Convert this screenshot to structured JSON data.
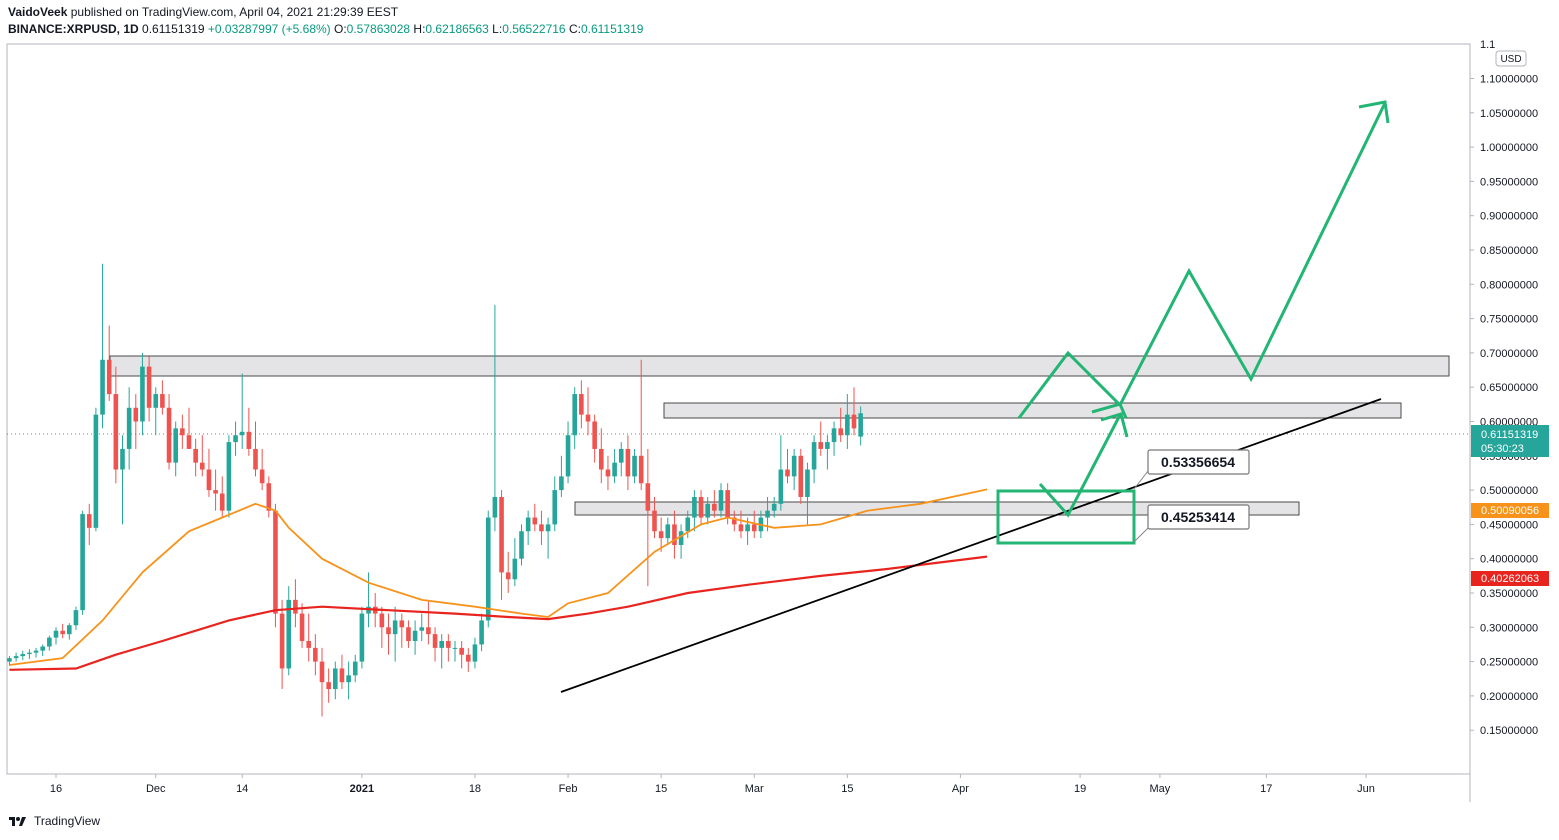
{
  "header": {
    "author": "VaidoVeek",
    "published_text": "published on TradingView.com, April 04, 2021 21:29:39 EEST",
    "symbol": "BINANCE:XRPUSD, 1D",
    "last": "0.61151319",
    "change": "+0.03287997 (+5.68%)",
    "o_label": "O:",
    "o_value": "0.57863028",
    "h_label": "H:",
    "h_value": "0.62186563",
    "l_label": "L:",
    "l_value": "0.56522716",
    "c_label": "C:",
    "c_value": "0.61151319"
  },
  "footer": {
    "brand": "TradingView",
    "icon": "tradingview-logo-icon"
  },
  "colors": {
    "up": "#26a69a",
    "down": "#ef5350",
    "ema_fast": "#f7931a",
    "ema_slow": "#e8241f",
    "projection": "#22b573",
    "trendline": "#000000",
    "zone_fill": "#e4e4e7",
    "price_line": "#26a69a"
  },
  "chart_data": {
    "type": "candlestick",
    "title": "BINANCE:XRPUSD, 1D",
    "currency_label": "USD",
    "ylim": [
      0.12,
      1.13
    ],
    "y_ticks": [
      "0.15000000",
      "0.20000000",
      "0.25000000",
      "0.30000000",
      "0.35000000",
      "0.40000000",
      "0.45000000",
      "0.50000000",
      "0.55000000",
      "0.60000000",
      "0.65000000",
      "0.70000000",
      "0.75000000",
      "0.80000000",
      "0.85000000",
      "0.90000000",
      "0.95000000",
      "1.00000000",
      "1.05000000",
      "1.10000000"
    ],
    "y_top_tick": "1.1",
    "x_ticks": [
      {
        "label": "16",
        "day": 0
      },
      {
        "label": "Dec",
        "day": 15
      },
      {
        "label": "14",
        "day": 28
      },
      {
        "label": "2021",
        "day": 46,
        "bold": true
      },
      {
        "label": "18",
        "day": 63
      },
      {
        "label": "Feb",
        "day": 77
      },
      {
        "label": "15",
        "day": 91
      },
      {
        "label": "Mar",
        "day": 105
      },
      {
        "label": "15",
        "day": 119
      },
      {
        "label": "Apr",
        "day": 136
      },
      {
        "label": "19",
        "day": 154
      },
      {
        "label": "May",
        "day": 166
      },
      {
        "label": "17",
        "day": 182
      },
      {
        "label": "Jun",
        "day": 197
      }
    ],
    "price_badges": [
      {
        "value": "0.61151319",
        "sub": "05:30:23",
        "color": "#26a69a"
      },
      {
        "value": "0.50090056",
        "color": "#f7931a"
      },
      {
        "value": "0.40262063",
        "color": "#e8241f"
      }
    ],
    "callouts": [
      "0.53356654",
      "0.45253414"
    ],
    "candles_start_day": -7,
    "candles": [
      [
        0.25,
        0.258,
        0.244,
        0.255
      ],
      [
        0.255,
        0.263,
        0.25,
        0.258
      ],
      [
        0.258,
        0.266,
        0.252,
        0.261
      ],
      [
        0.261,
        0.268,
        0.254,
        0.263
      ],
      [
        0.263,
        0.27,
        0.256,
        0.266
      ],
      [
        0.266,
        0.275,
        0.258,
        0.272
      ],
      [
        0.272,
        0.288,
        0.266,
        0.285
      ],
      [
        0.285,
        0.3,
        0.275,
        0.295
      ],
      [
        0.295,
        0.305,
        0.284,
        0.29
      ],
      [
        0.29,
        0.306,
        0.282,
        0.303
      ],
      [
        0.303,
        0.33,
        0.296,
        0.325
      ],
      [
        0.325,
        0.47,
        0.318,
        0.465
      ],
      [
        0.465,
        0.48,
        0.42,
        0.445
      ],
      [
        0.445,
        0.62,
        0.44,
        0.61
      ],
      [
        0.61,
        0.83,
        0.59,
        0.69
      ],
      [
        0.69,
        0.74,
        0.63,
        0.64
      ],
      [
        0.64,
        0.68,
        0.51,
        0.53
      ],
      [
        0.53,
        0.58,
        0.45,
        0.56
      ],
      [
        0.56,
        0.65,
        0.53,
        0.62
      ],
      [
        0.62,
        0.64,
        0.56,
        0.6
      ],
      [
        0.6,
        0.7,
        0.58,
        0.68
      ],
      [
        0.68,
        0.695,
        0.6,
        0.62
      ],
      [
        0.62,
        0.65,
        0.58,
        0.64
      ],
      [
        0.64,
        0.66,
        0.61,
        0.62
      ],
      [
        0.62,
        0.64,
        0.53,
        0.54
      ],
      [
        0.54,
        0.6,
        0.52,
        0.59
      ],
      [
        0.59,
        0.61,
        0.56,
        0.58
      ],
      [
        0.58,
        0.62,
        0.56,
        0.56
      ],
      [
        0.56,
        0.575,
        0.52,
        0.54
      ],
      [
        0.54,
        0.58,
        0.52,
        0.53
      ],
      [
        0.53,
        0.56,
        0.49,
        0.5
      ],
      [
        0.5,
        0.53,
        0.47,
        0.495
      ],
      [
        0.495,
        0.52,
        0.46,
        0.47
      ],
      [
        0.47,
        0.58,
        0.46,
        0.57
      ],
      [
        0.57,
        0.6,
        0.55,
        0.58
      ],
      [
        0.58,
        0.67,
        0.56,
        0.585
      ],
      [
        0.585,
        0.62,
        0.55,
        0.56
      ],
      [
        0.56,
        0.6,
        0.52,
        0.53
      ],
      [
        0.53,
        0.56,
        0.5,
        0.51
      ],
      [
        0.51,
        0.52,
        0.46,
        0.47
      ],
      [
        0.47,
        0.48,
        0.3,
        0.32
      ],
      [
        0.32,
        0.34,
        0.21,
        0.24
      ],
      [
        0.24,
        0.36,
        0.23,
        0.34
      ],
      [
        0.34,
        0.37,
        0.3,
        0.32
      ],
      [
        0.32,
        0.335,
        0.27,
        0.28
      ],
      [
        0.28,
        0.32,
        0.25,
        0.27
      ],
      [
        0.27,
        0.29,
        0.23,
        0.25
      ],
      [
        0.25,
        0.27,
        0.17,
        0.22
      ],
      [
        0.22,
        0.24,
        0.19,
        0.21
      ],
      [
        0.21,
        0.25,
        0.195,
        0.24
      ],
      [
        0.24,
        0.26,
        0.21,
        0.22
      ],
      [
        0.22,
        0.25,
        0.195,
        0.23
      ],
      [
        0.23,
        0.26,
        0.22,
        0.25
      ],
      [
        0.25,
        0.33,
        0.24,
        0.32
      ],
      [
        0.32,
        0.38,
        0.3,
        0.33
      ],
      [
        0.33,
        0.35,
        0.3,
        0.32
      ],
      [
        0.32,
        0.33,
        0.27,
        0.3
      ],
      [
        0.3,
        0.32,
        0.26,
        0.29
      ],
      [
        0.29,
        0.33,
        0.25,
        0.31
      ],
      [
        0.31,
        0.32,
        0.27,
        0.3
      ],
      [
        0.3,
        0.31,
        0.27,
        0.28
      ],
      [
        0.28,
        0.31,
        0.26,
        0.295
      ],
      [
        0.295,
        0.32,
        0.28,
        0.3
      ],
      [
        0.3,
        0.34,
        0.275,
        0.29
      ],
      [
        0.29,
        0.3,
        0.25,
        0.27
      ],
      [
        0.27,
        0.29,
        0.24,
        0.28
      ],
      [
        0.28,
        0.29,
        0.25,
        0.27
      ],
      [
        0.27,
        0.28,
        0.25,
        0.27
      ],
      [
        0.27,
        0.28,
        0.24,
        0.26
      ],
      [
        0.26,
        0.27,
        0.235,
        0.25
      ],
      [
        0.25,
        0.285,
        0.24,
        0.275
      ],
      [
        0.275,
        0.32,
        0.265,
        0.31
      ],
      [
        0.31,
        0.47,
        0.3,
        0.46
      ],
      [
        0.46,
        0.77,
        0.44,
        0.49
      ],
      [
        0.49,
        0.5,
        0.34,
        0.38
      ],
      [
        0.38,
        0.41,
        0.35,
        0.37
      ],
      [
        0.37,
        0.43,
        0.36,
        0.4
      ],
      [
        0.4,
        0.45,
        0.39,
        0.44
      ],
      [
        0.44,
        0.47,
        0.42,
        0.46
      ],
      [
        0.46,
        0.48,
        0.44,
        0.45
      ],
      [
        0.45,
        0.47,
        0.42,
        0.44
      ],
      [
        0.44,
        0.46,
        0.4,
        0.45
      ],
      [
        0.45,
        0.52,
        0.44,
        0.5
      ],
      [
        0.5,
        0.55,
        0.49,
        0.52
      ],
      [
        0.52,
        0.6,
        0.51,
        0.58
      ],
      [
        0.58,
        0.65,
        0.56,
        0.64
      ],
      [
        0.64,
        0.66,
        0.59,
        0.61
      ],
      [
        0.61,
        0.65,
        0.58,
        0.6
      ],
      [
        0.6,
        0.61,
        0.54,
        0.56
      ],
      [
        0.56,
        0.59,
        0.51,
        0.53
      ],
      [
        0.53,
        0.55,
        0.5,
        0.52
      ],
      [
        0.52,
        0.56,
        0.51,
        0.54
      ],
      [
        0.54,
        0.57,
        0.52,
        0.56
      ],
      [
        0.56,
        0.58,
        0.5,
        0.52
      ],
      [
        0.52,
        0.56,
        0.51,
        0.55
      ],
      [
        0.55,
        0.69,
        0.5,
        0.51
      ],
      [
        0.51,
        0.56,
        0.36,
        0.47
      ],
      [
        0.47,
        0.49,
        0.43,
        0.44
      ],
      [
        0.44,
        0.46,
        0.41,
        0.43
      ],
      [
        0.43,
        0.46,
        0.42,
        0.45
      ],
      [
        0.45,
        0.47,
        0.4,
        0.42
      ],
      [
        0.42,
        0.45,
        0.4,
        0.44
      ],
      [
        0.44,
        0.47,
        0.43,
        0.46
      ],
      [
        0.46,
        0.5,
        0.44,
        0.49
      ],
      [
        0.49,
        0.5,
        0.45,
        0.46
      ],
      [
        0.46,
        0.49,
        0.45,
        0.48
      ],
      [
        0.48,
        0.5,
        0.46,
        0.47
      ],
      [
        0.47,
        0.51,
        0.46,
        0.5
      ],
      [
        0.5,
        0.51,
        0.45,
        0.46
      ],
      [
        0.46,
        0.47,
        0.44,
        0.45
      ],
      [
        0.45,
        0.47,
        0.43,
        0.44
      ],
      [
        0.44,
        0.46,
        0.42,
        0.45
      ],
      [
        0.45,
        0.47,
        0.43,
        0.44
      ],
      [
        0.44,
        0.47,
        0.43,
        0.46
      ],
      [
        0.46,
        0.49,
        0.44,
        0.47
      ],
      [
        0.47,
        0.49,
        0.46,
        0.48
      ],
      [
        0.48,
        0.58,
        0.47,
        0.53
      ],
      [
        0.53,
        0.56,
        0.51,
        0.52
      ],
      [
        0.52,
        0.56,
        0.5,
        0.55
      ],
      [
        0.55,
        0.56,
        0.48,
        0.49
      ],
      [
        0.49,
        0.54,
        0.45,
        0.53
      ],
      [
        0.53,
        0.58,
        0.51,
        0.57
      ],
      [
        0.57,
        0.6,
        0.55,
        0.56
      ],
      [
        0.56,
        0.58,
        0.53,
        0.57
      ],
      [
        0.57,
        0.6,
        0.55,
        0.59
      ],
      [
        0.59,
        0.62,
        0.57,
        0.58
      ],
      [
        0.58,
        0.64,
        0.56,
        0.61
      ],
      [
        0.61,
        0.65,
        0.58,
        0.59
      ],
      [
        0.578,
        0.622,
        0.565,
        0.612
      ]
    ],
    "ema_fast": [
      [
        -7,
        0.245
      ],
      [
        1,
        0.255
      ],
      [
        7,
        0.31
      ],
      [
        13,
        0.38
      ],
      [
        20,
        0.44
      ],
      [
        25,
        0.46
      ],
      [
        30,
        0.48
      ],
      [
        33,
        0.47
      ],
      [
        35,
        0.445
      ],
      [
        40,
        0.4
      ],
      [
        47,
        0.365
      ],
      [
        55,
        0.34
      ],
      [
        63,
        0.33
      ],
      [
        70,
        0.32
      ],
      [
        74,
        0.315
      ],
      [
        77,
        0.335
      ],
      [
        83,
        0.35
      ],
      [
        90,
        0.41
      ],
      [
        97,
        0.45
      ],
      [
        101,
        0.46
      ],
      [
        108,
        0.445
      ],
      [
        115,
        0.45
      ],
      [
        122,
        0.47
      ],
      [
        130,
        0.48
      ],
      [
        140,
        0.501
      ]
    ],
    "ema_slow": [
      [
        -7,
        0.238
      ],
      [
        3,
        0.24
      ],
      [
        9,
        0.26
      ],
      [
        16,
        0.28
      ],
      [
        26,
        0.31
      ],
      [
        33,
        0.325
      ],
      [
        40,
        0.33
      ],
      [
        50,
        0.325
      ],
      [
        60,
        0.32
      ],
      [
        68,
        0.315
      ],
      [
        74,
        0.312
      ],
      [
        80,
        0.32
      ],
      [
        86,
        0.33
      ],
      [
        95,
        0.35
      ],
      [
        104,
        0.362
      ],
      [
        115,
        0.375
      ],
      [
        125,
        0.385
      ],
      [
        140,
        0.403
      ]
    ]
  }
}
